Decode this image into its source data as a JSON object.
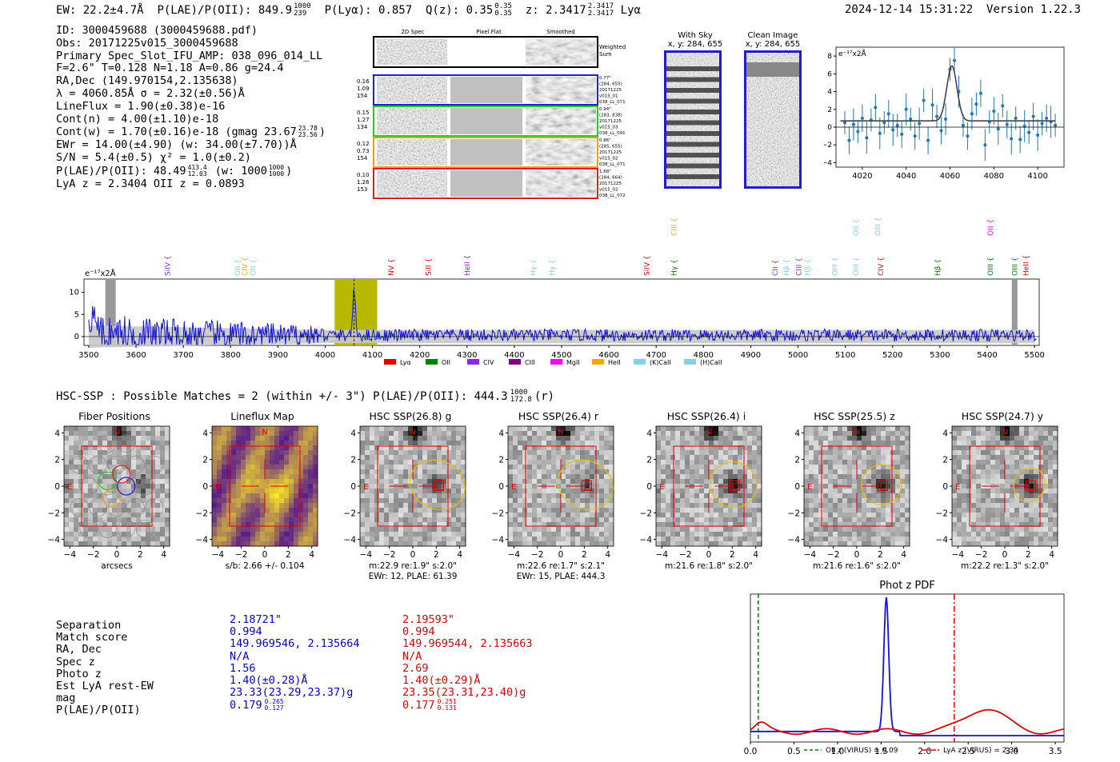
{
  "header": {
    "ew": "EW: 22.2±4.7Å",
    "plae_label": "P(LAE)/P(OII): 849.9",
    "plae_sup": "1000",
    "plae_sub": "239",
    "plya": "P(Lyα): 0.857",
    "qz_label": "Q(z): 0.35",
    "qz_sup": "0.35",
    "qz_sub": "0.35",
    "z_label": "z: 2.3417",
    "z_sup": "2.3417",
    "z_sub": "2.3417",
    "z_line": "Lyα",
    "timestamp": "2024-12-14 15:31:22",
    "version": "Version 1.22.3"
  },
  "info": {
    "id": "ID: 3000459688 (3000459688.pdf)",
    "obs": "Obs: 20171225v015_3000459688",
    "primary": "Primary Spec_Slot_IFU_AMP: 038_096_014_LL",
    "params": "F=2.6\"  T=0.128  N=1.18  A=0.86  g=24.4",
    "radec": "RA,Dec (149.970154,2.135638)",
    "lambda": "λ = 4060.85Å   σ = 2.32(±0.56)Å",
    "lineflux": "LineFlux = 1.90(±0.38)e-16",
    "contn": "Cont(n) = 4.00(±1.10)e-18",
    "contw": "Cont(w) = 1.70(±0.16)e-18 (gmag 23.67",
    "contw_sup": "23.78",
    "contw_sub": "23.56",
    "ewr": "EWr = 14.00(±4.90) (w: 34.00(±7.70))Å",
    "sn": "S/N = 5.4(±0.5)  χ² = 1.0(±0.2)",
    "plae": "P(LAE)/P(OII): 48.49",
    "plae_sup": "413.4",
    "plae_sub": "12.03",
    "plae_w": "(w: 1000",
    "plae_w_sup": "1000",
    "plae_w_sub": "1000",
    "lyaz": "LyA z = 2.3404   OII z = 0.0893"
  },
  "cutouts": {
    "col_2d": "2D Spec",
    "col_flat": "Pixel Flat",
    "col_smooth": "Smoothed",
    "weighted": "Weighted Sum",
    "rows": [
      {
        "left": [
          "0.16",
          "1.09",
          "154"
        ],
        "right": [
          "0.77\"",
          "(284, 655)",
          "20171225",
          "v015_01",
          "038_LL_071"
        ],
        "color": "#1f1fd0"
      },
      {
        "left": [
          "0.15",
          "1.27",
          "134"
        ],
        "right": [
          "0.94\"",
          "(283, 838)",
          "20171225",
          "v015_03",
          "038_LL_091"
        ],
        "color": "#22cc22"
      },
      {
        "left": [
          "0.12",
          "0.73",
          "154"
        ],
        "right": [
          "0.86\"",
          "(285, 655)",
          "20171225",
          "v015_02",
          "038_LL_071"
        ],
        "color": "#e8a020"
      },
      {
        "left": [
          "0.10",
          "1.26",
          "153"
        ],
        "right": [
          "1.68\"",
          "(284, 664)",
          "20171225",
          "v015_02",
          "038_LL_072"
        ],
        "color": "#e02020"
      }
    ]
  },
  "sky": {
    "with_title": "With Sky",
    "with_xy": "x, y: 284, 655",
    "clean_title": "Clean Image",
    "clean_xy": "x, y: 284, 655"
  },
  "fit_plot": {
    "ylabel": "e⁻¹⁷x2Å",
    "xticks": [
      "4020",
      "4040",
      "4060",
      "4080",
      "4100"
    ],
    "yticks": [
      "8",
      "6",
      "4",
      "2",
      "0",
      "−2",
      "−4"
    ]
  },
  "full_spec": {
    "ylabel": "e⁻¹⁷x2Å",
    "yticks": [
      "10",
      "5",
      "0"
    ],
    "xticks": [
      "3500",
      "3600",
      "3700",
      "3800",
      "3900",
      "4000",
      "4100",
      "4200",
      "4300",
      "4400",
      "4500",
      "4600",
      "4700",
      "4800",
      "4900",
      "5000",
      "5100",
      "5200",
      "5300",
      "5400",
      "5500"
    ],
    "legend": [
      {
        "label": "Lyα",
        "color": "#e00000"
      },
      {
        "label": "OII",
        "color": "#008000"
      },
      {
        "label": "CIV",
        "color": "#8a2be2"
      },
      {
        "label": "CIII",
        "color": "#800080"
      },
      {
        "label": "MgII",
        "color": "#ff00ff"
      },
      {
        "label": "HeII",
        "color": "#ffa500"
      },
      {
        "label": "(K)CaII",
        "color": "#87ceeb"
      },
      {
        "label": "(H)CaII",
        "color": "#87ceeb"
      }
    ],
    "lines": [
      {
        "label": "SiIV",
        "color": "#8a2be2",
        "x": 3667,
        "tier": 0
      },
      {
        "label": "OII",
        "color": "#87ceeb",
        "x": 3815,
        "tier": 0
      },
      {
        "label": "CIV",
        "color": "#ffa500",
        "x": 3830,
        "tier": 0
      },
      {
        "label": "OII",
        "color": "#87ceeb",
        "x": 3848,
        "tier": 0
      },
      {
        "label": "NV",
        "color": "#e00000",
        "x": 4140,
        "tier": 0
      },
      {
        "label": "SiII",
        "color": "#e00000",
        "x": 4218,
        "tier": 0
      },
      {
        "label": "HeII",
        "color": "#8a2be2",
        "x": 4300,
        "tier": 0
      },
      {
        "label": "Hγ",
        "color": "#87ceeb",
        "x": 4440,
        "tier": 0
      },
      {
        "label": "Hγ",
        "color": "#87ceeb",
        "x": 4480,
        "tier": 0
      },
      {
        "label": "SiIV",
        "color": "#e00000",
        "x": 4680,
        "tier": 0
      },
      {
        "label": "Hγ",
        "color": "#008000",
        "x": 4738,
        "tier": 0
      },
      {
        "label": "CIII",
        "color": "#ffa500",
        "x": 4738,
        "tier": 1
      },
      {
        "label": "CII",
        "color": "#8a2be2",
        "x": 4952,
        "tier": 0
      },
      {
        "label": "Hβ",
        "color": "#87ceeb",
        "x": 4975,
        "tier": 0
      },
      {
        "label": "CIII",
        "color": "#8a2be2",
        "x": 5002,
        "tier": 0
      },
      {
        "label": "Hβ",
        "color": "#87ceeb",
        "x": 5020,
        "tier": 0
      },
      {
        "label": "OIII",
        "color": "#87ceeb",
        "x": 5078,
        "tier": 0
      },
      {
        "label": "OIII",
        "color": "#87ceeb",
        "x": 5123,
        "tier": 0
      },
      {
        "label": "CIV",
        "color": "#e00000",
        "x": 5175,
        "tier": 0
      },
      {
        "label": "OII",
        "color": "#87ceeb",
        "x": 5123,
        "tier": 1
      },
      {
        "label": "OIII",
        "color": "#87ceeb",
        "x": 5168,
        "tier": 1
      },
      {
        "label": "Hβ",
        "color": "#008000",
        "x": 5295,
        "tier": 0
      },
      {
        "label": "OIII",
        "color": "#008000",
        "x": 5407,
        "tier": 0
      },
      {
        "label": "OII",
        "color": "#ff00ff",
        "x": 5407,
        "tier": 1
      },
      {
        "label": "OIII",
        "color": "#008000",
        "x": 5458,
        "tier": 0
      },
      {
        "label": "HeII",
        "color": "#e00000",
        "x": 5482,
        "tier": 0
      }
    ]
  },
  "hsc": {
    "summary": "HSC-SSP : Possible Matches = 2 (within +/- 3\")  P(LAE)/P(OII): 444.3",
    "summary_sup": "1000",
    "summary_sub": "172.8",
    "summary_band": "(r)",
    "ticks": [
      "−4",
      "−2",
      "0",
      "2",
      "4"
    ],
    "panels": [
      {
        "title": "Fiber Positions",
        "caption1": "arcsecs",
        "caption2": ""
      },
      {
        "title": "Lineflux Map",
        "caption1": "s/b: 2.66 +/- 0.104",
        "caption2": ""
      },
      {
        "title": "HSC SSP(26.8) g",
        "caption1": "m:22.9  re:1.9\"  s:2.0\"",
        "caption2": "EWr: 12, PLAE: 61.39"
      },
      {
        "title": "HSC SSP(26.4) r",
        "caption1": "m:22.6  re:1.7\"  s:2.1\"",
        "caption2": "EWr: 15, PLAE: 444.3"
      },
      {
        "title": "HSC SSP(26.4) i",
        "caption1": "m:21.6  re:1.8\"  s:2.0\"",
        "caption2": ""
      },
      {
        "title": "HSC SSP(25.5) z",
        "caption1": "m:21.6  re:1.6\"  s:2.0\"",
        "caption2": ""
      },
      {
        "title": "HSC SSP(24.7) y",
        "caption1": "m:22.2  re:1.3\"  s:2.0\"",
        "caption2": ""
      }
    ]
  },
  "matches": {
    "labels": [
      "Separation",
      "Match score",
      "RA, Dec",
      "Spec z",
      "Photo z",
      "Est LyA rest-EW",
      "mag",
      "P(LAE)/P(OII)"
    ],
    "m1": [
      "2.18721\"",
      "0.994",
      "149.969546, 2.135664",
      "N/A",
      "1.56",
      "1.40(±0.28)Å",
      "23.33(23.29,23.37)g",
      "0.179"
    ],
    "m1_sup": "0.265",
    "m1_sub": "0.127",
    "m2": [
      "2.19593\"",
      "0.994",
      "149.969544, 2.135663",
      "N/A",
      "2.69",
      "1.40(±0.29)Å",
      "23.35(23.31,23.40)g",
      "0.177"
    ],
    "m2_sup": "0.251",
    "m2_sub": "0.131"
  },
  "photz": {
    "title": "Phot z PDF",
    "xticks": [
      "0.0",
      "0.5",
      "1.0",
      "1.5",
      "2.0",
      "2.5",
      "3.0",
      "3.5"
    ],
    "legend_oii": "OII z (VIRUS) = 0.09",
    "legend_lya": "LyA z (VIRUS) = 2.34",
    "oii_z": 0.09,
    "lya_z": 2.34
  },
  "chart_data": [
    {
      "type": "scatter",
      "title": "",
      "ylabel": "e⁻¹⁷x2Å",
      "xlim": [
        4008,
        4112
      ],
      "ylim": [
        -4.5,
        9
      ],
      "x": [
        4012,
        4014,
        4016,
        4018,
        4020,
        4022,
        4024,
        4026,
        4028,
        4030,
        4032,
        4034,
        4036,
        4038,
        4040,
        4042,
        4044,
        4046,
        4048,
        4050,
        4052,
        4054,
        4056,
        4058,
        4060,
        4062,
        4064,
        4066,
        4068,
        4070,
        4072,
        4074,
        4076,
        4078,
        4080,
        4082,
        4084,
        4086,
        4088,
        4090,
        4092,
        4094,
        4096,
        4098,
        4100,
        4102,
        4104,
        4106,
        4108
      ],
      "y": [
        0.5,
        -1.5,
        0.3,
        -0.5,
        1.0,
        -1.2,
        0.8,
        2.2,
        -0.7,
        0.5,
        1.5,
        -0.3,
        0.2,
        -0.8,
        2.0,
        0.9,
        -1.0,
        0.4,
        3.0,
        -1.5,
        2.5,
        1.2,
        -0.4,
        0.9,
        6.5,
        7.5,
        4.0,
        0.2,
        -1.0,
        1.5,
        2.6,
        3.8,
        -2.0,
        0.6,
        1.8,
        -0.2,
        2.4,
        0.3,
        -1.3,
        1.0,
        -1.4,
        0.1,
        -0.6,
        1.2,
        -0.9,
        0.4,
        1.0,
        0.6,
        0.2
      ]
    },
    {
      "type": "line",
      "title": "",
      "ylabel": "e⁻¹⁷x2Å",
      "xlim": [
        3490,
        5510
      ],
      "ylim": [
        -2,
        13
      ],
      "highlight_range": [
        4020,
        4110
      ],
      "note": "blue flux spectrum, grey noise band"
    },
    {
      "type": "line",
      "title": "Phot z PDF",
      "xlim": [
        0,
        3.6
      ],
      "series": [
        {
          "name": "match 1 (blue)",
          "peak_z": 1.56
        },
        {
          "name": "match 2 (red)",
          "peak_z": 2.69
        }
      ],
      "vlines": [
        {
          "name": "OII z (VIRUS)",
          "x": 0.09
        },
        {
          "name": "LyA z (VIRUS)",
          "x": 2.34
        }
      ]
    }
  ]
}
